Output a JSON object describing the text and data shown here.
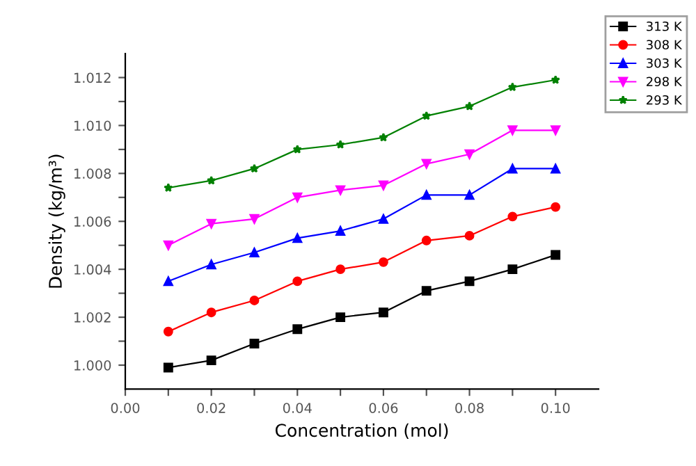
{
  "chart_data": {
    "type": "line",
    "xlabel": "Concentration (mol)",
    "ylabel": "Density (kg/m³)",
    "x": [
      0.01,
      0.02,
      0.03,
      0.04,
      0.05,
      0.06,
      0.07,
      0.08,
      0.09,
      0.1
    ],
    "series": [
      {
        "name": "313 K",
        "color": "#000000",
        "marker": "square",
        "values": [
          0.9999,
          1.0002,
          1.0009,
          1.0015,
          1.002,
          1.0022,
          1.0031,
          1.0035,
          1.004,
          1.0046
        ]
      },
      {
        "name": "308 K",
        "color": "#ff0000",
        "marker": "circle",
        "values": [
          1.0014,
          1.0022,
          1.0027,
          1.0035,
          1.004,
          1.0043,
          1.0052,
          1.0054,
          1.0062,
          1.0066
        ]
      },
      {
        "name": "303 K",
        "color": "#0000ff",
        "marker": "triangle",
        "values": [
          1.0035,
          1.0042,
          1.0047,
          1.0053,
          1.0056,
          1.0061,
          1.0071,
          1.0071,
          1.0082,
          1.0082
        ]
      },
      {
        "name": "298 K",
        "color": "#ff00ff",
        "marker": "triangle_down",
        "values": [
          1.005,
          1.0059,
          1.0061,
          1.007,
          1.0073,
          1.0075,
          1.0084,
          1.0088,
          1.0098,
          1.0098
        ]
      },
      {
        "name": "293 K",
        "color": "#008000",
        "marker": "star",
        "values": [
          1.0074,
          1.0077,
          1.0082,
          1.009,
          1.0092,
          1.0095,
          1.0104,
          1.0108,
          1.0116,
          1.0119
        ]
      }
    ],
    "xlim": [
      0.0,
      0.11
    ],
    "ylim": [
      0.999,
      1.013
    ],
    "xticks": [
      {
        "value": 0.0,
        "label": "0.00"
      },
      {
        "value": 0.01,
        "label": null
      },
      {
        "value": 0.02,
        "label": "0.02"
      },
      {
        "value": 0.03,
        "label": null
      },
      {
        "value": 0.04,
        "label": "0.04"
      },
      {
        "value": 0.05,
        "label": null
      },
      {
        "value": 0.06,
        "label": "0.06"
      },
      {
        "value": 0.07,
        "label": null
      },
      {
        "value": 0.08,
        "label": "0.08"
      },
      {
        "value": 0.09,
        "label": null
      },
      {
        "value": 0.1,
        "label": "0.10"
      }
    ],
    "yticks": [
      {
        "value": 1.0,
        "label": "1.000"
      },
      {
        "value": 1.001,
        "label": null
      },
      {
        "value": 1.002,
        "label": "1.002"
      },
      {
        "value": 1.003,
        "label": null
      },
      {
        "value": 1.004,
        "label": "1.004"
      },
      {
        "value": 1.005,
        "label": null
      },
      {
        "value": 1.006,
        "label": "1.006"
      },
      {
        "value": 1.007,
        "label": null
      },
      {
        "value": 1.008,
        "label": "1.008"
      },
      {
        "value": 1.009,
        "label": null
      },
      {
        "value": 1.01,
        "label": "1.010"
      },
      {
        "value": 1.011,
        "label": null
      },
      {
        "value": 1.012,
        "label": "1.012"
      }
    ],
    "grid": false,
    "legend": "top right",
    "line_style": "solid"
  }
}
